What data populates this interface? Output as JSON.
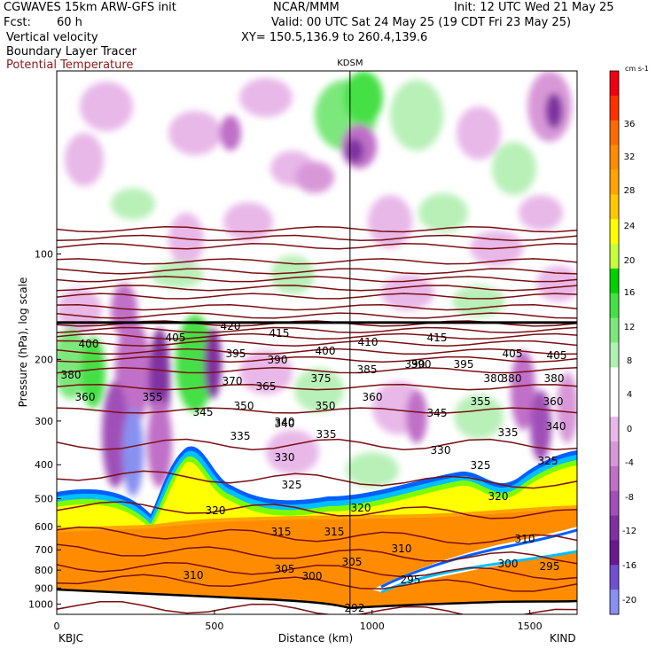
{
  "header": {
    "title_left": "CGWAVES 15km ARW-GFS init",
    "center_top": "NCAR/MMM",
    "init": "Init: 12 UTC Wed 21 May 25",
    "fcst_label": "Fcst:",
    "fcst_value": "60 h",
    "valid": "Valid: 00 UTC Sat 24 May 25 (19 CDT Fri 23 May 25)",
    "field1": "Vertical velocity",
    "field2": "Boundary Layer Tracer",
    "field3": "Potential Temperature",
    "xy": "XY= 150.5,136.9 to 260.4,139.6"
  },
  "colors": {
    "theta": "#7a0f12",
    "field3_text": "#8b1a1a"
  },
  "chart_data": {
    "type": "heatmap",
    "station_marker": "KDSM",
    "station_x_km": 930,
    "start_label": "KBJC",
    "end_label": "KIND",
    "xlabel": "Distance (km)",
    "ylabel": "Pressure (hPa), log scale",
    "xlim": [
      0,
      1650
    ],
    "ylim": [
      1070,
      30
    ],
    "y_log": true,
    "x_ticks": [
      0,
      500,
      1000,
      1500
    ],
    "y_ticks": [
      100,
      200,
      300,
      400,
      500,
      600,
      700,
      800,
      900,
      1000
    ],
    "colorbar": {
      "unit": "cm s-1",
      "ticks": [
        36,
        32,
        28,
        24,
        20,
        16,
        12,
        8,
        4,
        0,
        -4,
        -8,
        -12,
        -16,
        -20
      ],
      "colors": [
        "#f00010",
        "#ff3000",
        "#ff6a00",
        "#ff8c00",
        "#ffa400",
        "#ffc800",
        "#ffff00",
        "#c8ff3c",
        "#00d200",
        "#44e044",
        "#7ce87c",
        "#b0f0b0",
        "#ffffff",
        "#ffffff",
        "#e8b8e8",
        "#d898d8",
        "#c070c8",
        "#a050b8",
        "#8030a0",
        "#6a1890",
        "#7050d0",
        "#8890f0"
      ]
    },
    "theta_contours": [
      {
        "value": 420,
        "p": 85
      },
      {
        "value": 415,
        "p": 90
      },
      {
        "value": 410,
        "p": 95
      },
      {
        "value": 405,
        "p": 105
      },
      {
        "value": 400,
        "p": 112
      },
      {
        "value": 395,
        "p": 118
      },
      {
        "value": 390,
        "p": 125
      },
      {
        "value": 385,
        "p": 132
      },
      {
        "value": 380,
        "p": 142
      },
      {
        "value": 375,
        "p": 150
      },
      {
        "value": 370,
        "p": 158
      },
      {
        "value": 365,
        "p": 165
      },
      {
        "value": 360,
        "p": 172
      },
      {
        "value": 355,
        "p": 180
      },
      {
        "value": 350,
        "p": 190
      },
      {
        "value": 345,
        "p": 200
      },
      {
        "value": 340,
        "p": 215
      },
      {
        "value": 335,
        "p": 240
      },
      {
        "value": 330,
        "p": 280
      },
      {
        "value": 325,
        "p": 350
      },
      {
        "value": 320,
        "p": 440
      },
      {
        "value": 315,
        "p": 540
      },
      {
        "value": 310,
        "p": 640
      },
      {
        "value": 305,
        "p": 720
      },
      {
        "value": 300,
        "p": 800
      },
      {
        "value": 295,
        "p": 870
      },
      {
        "value": 292,
        "p": 1040
      }
    ],
    "theta_label_values": [
      "420",
      "415",
      "410",
      "415",
      "400",
      "405",
      "395",
      "390",
      "400",
      "385",
      "390",
      "395",
      "405",
      "405",
      "380",
      "375",
      "370",
      "365",
      "360",
      "380",
      "380",
      "360",
      "355",
      "345",
      "350",
      "350",
      "340",
      "345",
      "355",
      "360",
      "335",
      "340",
      "335",
      "335",
      "340",
      "330",
      "330",
      "325",
      "325",
      "325",
      "320",
      "320",
      "320",
      "315",
      "315",
      "310",
      "310",
      "305",
      "305",
      "300",
      "310",
      "300",
      "295",
      "295",
      "292",
      "380",
      "390"
    ],
    "max_wind_level_hpa": 157
  }
}
